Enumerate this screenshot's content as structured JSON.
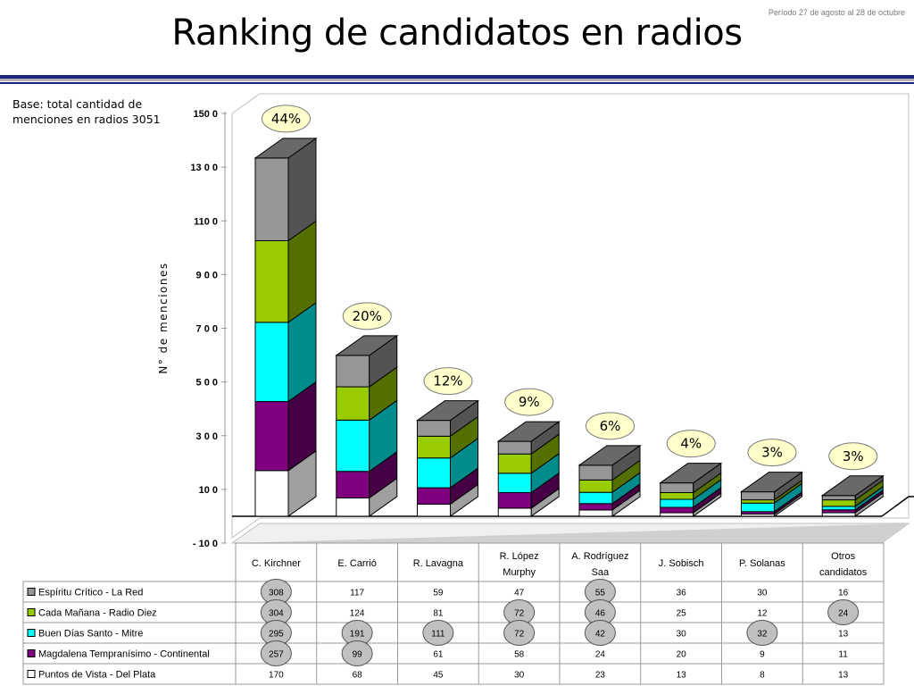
{
  "header": {
    "title": "Ranking de candidatos en radios",
    "period": "Período 27 de agosto al 28 de octubre"
  },
  "note": {
    "base_line1": "Base: total cantidad de",
    "base_line2": "menciones en radios 3051"
  },
  "colors": {
    "header_rule": "#1a237e",
    "Espíritu Crítico - La Red": "#969696",
    "Cada Mañana - Radio Diez": "#99cc00",
    "Buen Días Santo - Mitre": "#00ffff",
    "Magdalena Tempranísimo - Continental": "#800080",
    "Puntos de Vista - Del Plata": "#ffffff",
    "highlight_oval": "#c0c0c0",
    "percent_bubble": "#ffffcc"
  },
  "chart_data": {
    "type": "bar",
    "stacked": true,
    "three_d": true,
    "ylabel": "N° de menciones",
    "ylim": [
      -100,
      1500
    ],
    "yticks": [
      -100,
      100,
      300,
      500,
      700,
      900,
      1100,
      1300,
      1500
    ],
    "ytick_labels": [
      "- 10 0",
      "10 0",
      "3 0 0",
      "5 0 0",
      "7 0 0",
      "9 0 0",
      "110 0",
      "13 0 0",
      "150 0"
    ],
    "categories": [
      "C. Kirchner",
      "E. Carrió",
      "R. Lavagna",
      "R. López Murphy",
      "A. Rodríguez Saa",
      "J. Sobisch",
      "P. Solanas",
      "Otros candidatos"
    ],
    "category_labels": [
      [
        "C. Kirchner"
      ],
      [
        "E. Carrió"
      ],
      [
        "R. Lavagna"
      ],
      [
        "R. López",
        "Murphy"
      ],
      [
        "A. Rodríguez",
        "Saa"
      ],
      [
        "J. Sobisch"
      ],
      [
        "P. Solanas"
      ],
      [
        "Otros",
        "candidatos"
      ]
    ],
    "percent_labels": [
      "44%",
      "20%",
      "12%",
      "9%",
      "6%",
      "4%",
      "3%",
      "3%"
    ],
    "series": [
      {
        "name": "Espíritu Crítico - La Red",
        "values": [
          308,
          117,
          59,
          47,
          55,
          36,
          30,
          16
        ]
      },
      {
        "name": "Cada Mañana - Radio Diez",
        "values": [
          304,
          124,
          81,
          72,
          46,
          25,
          12,
          24
        ]
      },
      {
        "name": "Buen Días Santo - Mitre",
        "values": [
          295,
          191,
          111,
          72,
          42,
          30,
          32,
          13
        ]
      },
      {
        "name": "Magdalena Tempranísimo - Continental",
        "values": [
          257,
          99,
          61,
          58,
          24,
          20,
          9,
          11
        ]
      },
      {
        "name": "Puntos de Vista - Del Plata",
        "values": [
          170,
          68,
          45,
          30,
          23,
          13,
          8,
          13
        ]
      }
    ],
    "highlighted_cells": [
      [
        0,
        0
      ],
      [
        0,
        1
      ],
      [
        0,
        2
      ],
      [
        0,
        3
      ],
      [
        1,
        2
      ],
      [
        1,
        3
      ],
      [
        2,
        2
      ],
      [
        3,
        1
      ],
      [
        3,
        2
      ],
      [
        4,
        0
      ],
      [
        4,
        1
      ],
      [
        4,
        2
      ],
      [
        6,
        2
      ],
      [
        7,
        1
      ]
    ],
    "grid": false,
    "legend": "table-left"
  }
}
